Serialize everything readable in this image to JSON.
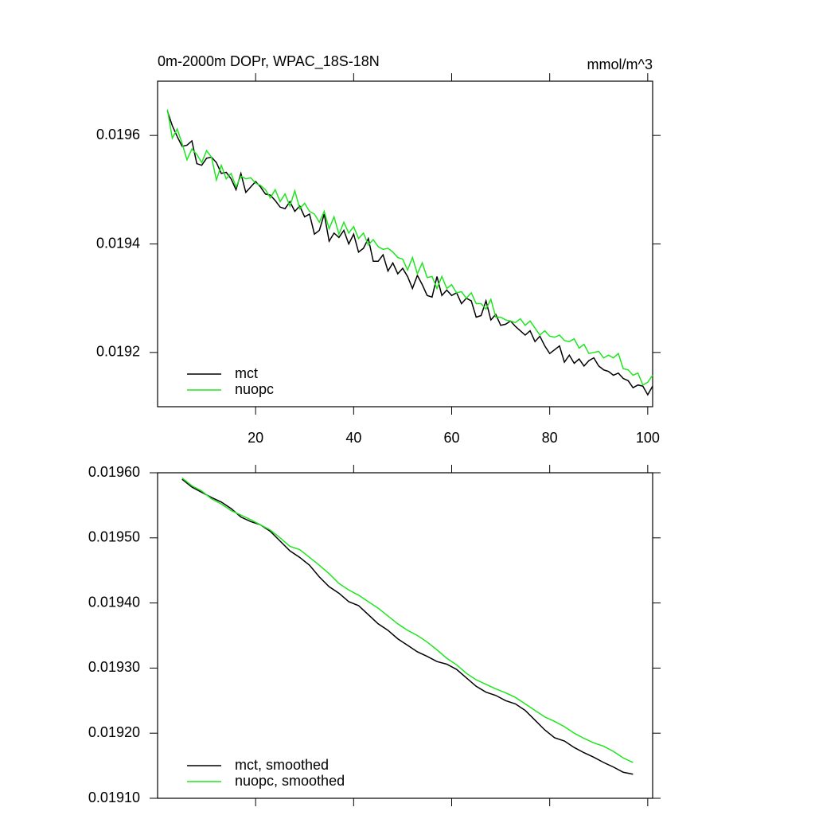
{
  "chart_data": [
    {
      "type": "line",
      "title": "0m-2000m DOPr, WPAC_18S-18N",
      "units": "mmol/m^3",
      "x": [
        2,
        3,
        4,
        5,
        6,
        7,
        8,
        9,
        10,
        11,
        12,
        13,
        14,
        15,
        16,
        17,
        18,
        19,
        20,
        21,
        22,
        23,
        24,
        25,
        26,
        27,
        28,
        29,
        30,
        31,
        32,
        33,
        34,
        35,
        36,
        37,
        38,
        39,
        40,
        41,
        42,
        43,
        44,
        45,
        46,
        47,
        48,
        49,
        50,
        51,
        52,
        53,
        54,
        55,
        56,
        57,
        58,
        59,
        60,
        61,
        62,
        63,
        64,
        65,
        66,
        67,
        68,
        69,
        70,
        71,
        72,
        73,
        74,
        75,
        76,
        77,
        78,
        79,
        80,
        81,
        82,
        83,
        84,
        85,
        86,
        87,
        88,
        89,
        90,
        91,
        92,
        93,
        94,
        95,
        96,
        97,
        98,
        99,
        100,
        101
      ],
      "series": [
        {
          "name": "mct",
          "color": "#000000",
          "values": [
            0.019645,
            0.019618,
            0.019598,
            0.01958,
            0.019582,
            0.01959,
            0.019548,
            0.019545,
            0.019558,
            0.01956,
            0.01955,
            0.01953,
            0.019532,
            0.01952,
            0.0195,
            0.01953,
            0.019495,
            0.019505,
            0.019515,
            0.019505,
            0.019492,
            0.01949,
            0.01948,
            0.019468,
            0.019465,
            0.019478,
            0.01946,
            0.01947,
            0.01945,
            0.019455,
            0.019418,
            0.019425,
            0.019455,
            0.019405,
            0.01942,
            0.019412,
            0.019425,
            0.0194,
            0.019418,
            0.019385,
            0.019392,
            0.01941,
            0.019368,
            0.019368,
            0.01938,
            0.01935,
            0.019365,
            0.019345,
            0.019355,
            0.01934,
            0.019318,
            0.019342,
            0.019325,
            0.019305,
            0.019302,
            0.01934,
            0.019305,
            0.019315,
            0.019305,
            0.01931,
            0.01929,
            0.0193,
            0.019295,
            0.019265,
            0.019268,
            0.019295,
            0.01926,
            0.01927,
            0.01925,
            0.019252,
            0.019258,
            0.019248,
            0.01924,
            0.019232,
            0.01924,
            0.01922,
            0.01923,
            0.019212,
            0.019198,
            0.019205,
            0.019212,
            0.019182,
            0.019195,
            0.01918,
            0.019188,
            0.019175,
            0.019185,
            0.01919,
            0.019175,
            0.019168,
            0.019165,
            0.019158,
            0.019162,
            0.019152,
            0.019148,
            0.019135,
            0.01914,
            0.019138,
            0.019122,
            0.019138
          ]
        },
        {
          "name": "nuopc",
          "color": "#1ee61e",
          "values": [
            0.019648,
            0.019595,
            0.019612,
            0.019585,
            0.019555,
            0.019575,
            0.019565,
            0.01955,
            0.019572,
            0.01956,
            0.019518,
            0.019545,
            0.01952,
            0.01953,
            0.019505,
            0.019525,
            0.01952,
            0.019522,
            0.019512,
            0.019508,
            0.0195,
            0.019485,
            0.0195,
            0.019478,
            0.019492,
            0.01947,
            0.019498,
            0.019465,
            0.019475,
            0.01946,
            0.019455,
            0.01944,
            0.01946,
            0.019428,
            0.01945,
            0.019418,
            0.01944,
            0.01942,
            0.019432,
            0.01941,
            0.01942,
            0.019398,
            0.019408,
            0.019395,
            0.01939,
            0.019392,
            0.019385,
            0.019375,
            0.019372,
            0.019352,
            0.019375,
            0.019345,
            0.019365,
            0.019338,
            0.01934,
            0.019318,
            0.01934,
            0.019318,
            0.019325,
            0.01931,
            0.019312,
            0.0193,
            0.01931,
            0.01929,
            0.01929,
            0.01928,
            0.019298,
            0.019265,
            0.019265,
            0.01926,
            0.019258,
            0.019255,
            0.019262,
            0.01925,
            0.019258,
            0.019245,
            0.019232,
            0.01924,
            0.01923,
            0.019228,
            0.019232,
            0.019222,
            0.01922,
            0.019225,
            0.019208,
            0.019215,
            0.019198,
            0.0192,
            0.019202,
            0.01919,
            0.019195,
            0.01919,
            0.019198,
            0.01917,
            0.019168,
            0.019158,
            0.019162,
            0.01914,
            0.019145,
            0.019158
          ]
        }
      ],
      "xlim": [
        0,
        101
      ],
      "xticks": [
        20,
        40,
        60,
        80,
        100
      ],
      "ylim": [
        0.0191,
        0.0197
      ],
      "yticks": [
        0.0192,
        0.0194,
        0.0196
      ],
      "legend": "lower left"
    },
    {
      "type": "line",
      "x": [
        5,
        7,
        9,
        11,
        13,
        15,
        17,
        19,
        21,
        23,
        25,
        27,
        29,
        31,
        33,
        35,
        37,
        39,
        41,
        43,
        45,
        47,
        49,
        51,
        53,
        55,
        57,
        59,
        61,
        63,
        65,
        67,
        69,
        71,
        73,
        75,
        77,
        79,
        81,
        83,
        85,
        87,
        89,
        91,
        93,
        95,
        97
      ],
      "series": [
        {
          "name": "mct, smoothed",
          "color": "#000000",
          "values": [
            0.01959,
            0.019578,
            0.01957,
            0.019562,
            0.019555,
            0.019545,
            0.019532,
            0.019525,
            0.01952,
            0.01951,
            0.019495,
            0.01948,
            0.01947,
            0.019458,
            0.01944,
            0.019425,
            0.019415,
            0.019402,
            0.019396,
            0.019382,
            0.019368,
            0.019358,
            0.019345,
            0.019335,
            0.019325,
            0.019318,
            0.01931,
            0.019306,
            0.019298,
            0.019285,
            0.019272,
            0.019263,
            0.019258,
            0.01925,
            0.019245,
            0.019235,
            0.01922,
            0.019205,
            0.019193,
            0.019188,
            0.019178,
            0.01917,
            0.019163,
            0.019155,
            0.019148,
            0.01914,
            0.019137
          ]
        },
        {
          "name": "nuopc, smoothed",
          "color": "#1ee61e",
          "values": [
            0.019592,
            0.01958,
            0.019572,
            0.01956,
            0.019552,
            0.019542,
            0.019535,
            0.019528,
            0.01952,
            0.019512,
            0.0195,
            0.019487,
            0.019482,
            0.01947,
            0.019458,
            0.019445,
            0.01943,
            0.01942,
            0.019412,
            0.019402,
            0.019392,
            0.01938,
            0.019368,
            0.019358,
            0.01935,
            0.01934,
            0.019328,
            0.019315,
            0.019305,
            0.019292,
            0.019282,
            0.019275,
            0.019268,
            0.019262,
            0.019255,
            0.019245,
            0.019235,
            0.019225,
            0.019218,
            0.01921,
            0.0192,
            0.019192,
            0.019185,
            0.01918,
            0.019172,
            0.019162,
            0.019155
          ]
        }
      ],
      "xlim": [
        0,
        101
      ],
      "xticks": [
        20,
        40,
        60,
        80,
        100
      ],
      "ylim": [
        0.0191,
        0.0196
      ],
      "yticks": [
        {
          "value": 0.0191,
          "label": "0.01910"
        },
        {
          "value": 0.0192,
          "label": "0.01920"
        },
        {
          "value": 0.0193,
          "label": "0.01930"
        },
        {
          "value": 0.0194,
          "label": "0.01940"
        },
        {
          "value": 0.0195,
          "label": "0.01950"
        },
        {
          "value": 0.0196,
          "label": "0.01960"
        }
      ],
      "legend": "lower left"
    }
  ]
}
